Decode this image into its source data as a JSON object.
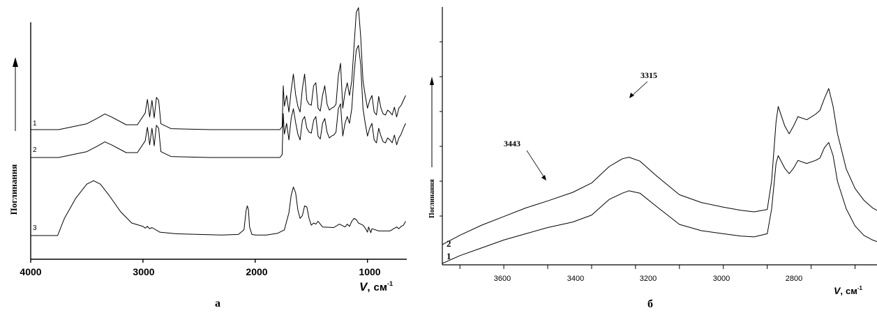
{
  "panels": [
    {
      "caption": "а",
      "ylabel": "Поглинання",
      "xlabel_symbol": "V",
      "xlabel_sep": ",",
      "xlabel_unit": "см",
      "xlabel_exp": "-1",
      "xticks": [
        "4000",
        "3000",
        "2000",
        "1000"
      ],
      "curve_labels": [
        "1",
        "2",
        "3"
      ]
    },
    {
      "caption": "б",
      "ylabel": "Поглинання",
      "xlabel_symbol": "V",
      "xlabel_sep": ",",
      "xlabel_unit": "см",
      "xlabel_exp": "-1",
      "xticks": [
        "3600",
        "3400",
        "3200",
        "3000",
        "2800"
      ],
      "curve_labels": [
        "2",
        "1"
      ],
      "annotations": [
        "3443",
        "3315"
      ]
    }
  ],
  "chart_data": [
    {
      "type": "line",
      "xlabel": "V, см-1",
      "ylabel": "Поглинання",
      "xlim": [
        4000,
        650
      ],
      "x_reversed": true,
      "y_units": "relative absorbance (offset curves)",
      "series": [
        {
          "name": "1",
          "x": [
            4000,
            3750,
            3500,
            3400,
            3340,
            3280,
            3150,
            3050,
            2980,
            2960,
            2940,
            2920,
            2900,
            2880,
            2860,
            2840,
            2750,
            2400,
            2000,
            1780,
            1760,
            1750,
            1740,
            1720,
            1700,
            1680,
            1660,
            1640,
            1620,
            1600,
            1580,
            1560,
            1540,
            1520,
            1500,
            1480,
            1460,
            1440,
            1420,
            1400,
            1380,
            1360,
            1340,
            1320,
            1300,
            1280,
            1260,
            1240,
            1220,
            1200,
            1180,
            1160,
            1140,
            1120,
            1100,
            1080,
            1060,
            1040,
            1020,
            1000,
            980,
            960,
            940,
            920,
            900,
            880,
            860,
            840,
            820,
            800,
            780,
            760,
            740,
            720,
            700,
            680,
            660
          ],
          "y": [
            0.0,
            0.0,
            0.06,
            0.12,
            0.16,
            0.13,
            0.05,
            0.05,
            0.17,
            0.31,
            0.13,
            0.3,
            0.12,
            0.33,
            0.3,
            0.06,
            0.01,
            0.0,
            0.0,
            0.0,
            0.03,
            0.45,
            0.24,
            0.35,
            0.18,
            0.4,
            0.57,
            0.36,
            0.24,
            0.18,
            0.42,
            0.57,
            0.3,
            0.26,
            0.25,
            0.45,
            0.48,
            0.22,
            0.19,
            0.35,
            0.45,
            0.26,
            0.2,
            0.22,
            0.23,
            0.26,
            0.55,
            0.68,
            0.22,
            0.38,
            0.48,
            0.35,
            0.5,
            0.85,
            1.2,
            1.25,
            0.95,
            0.5,
            0.35,
            0.22,
            0.3,
            0.35,
            0.18,
            0.15,
            0.34,
            0.22,
            0.16,
            0.15,
            0.2,
            0.18,
            0.15,
            0.23,
            0.13,
            0.22,
            0.25,
            0.3,
            0.35
          ]
        },
        {
          "name": "2",
          "x": [
            4000,
            3750,
            3500,
            3400,
            3340,
            3280,
            3150,
            3050,
            2980,
            2960,
            2940,
            2920,
            2900,
            2880,
            2860,
            2840,
            2750,
            2400,
            2000,
            1780,
            1760,
            1750,
            1740,
            1720,
            1700,
            1680,
            1660,
            1640,
            1620,
            1600,
            1580,
            1560,
            1540,
            1520,
            1500,
            1480,
            1460,
            1440,
            1420,
            1400,
            1380,
            1360,
            1340,
            1320,
            1300,
            1280,
            1260,
            1240,
            1220,
            1200,
            1180,
            1160,
            1140,
            1120,
            1100,
            1080,
            1060,
            1040,
            1020,
            1000,
            980,
            960,
            940,
            920,
            900,
            880,
            860,
            840,
            820,
            800,
            780,
            760,
            740,
            720,
            700,
            680,
            660
          ],
          "y": [
            0.0,
            0.0,
            0.06,
            0.12,
            0.16,
            0.13,
            0.05,
            0.05,
            0.17,
            0.31,
            0.13,
            0.3,
            0.12,
            0.33,
            0.3,
            0.06,
            0.01,
            0.0,
            0.0,
            0.0,
            0.03,
            0.45,
            0.24,
            0.35,
            0.18,
            0.4,
            0.5,
            0.36,
            0.24,
            0.18,
            0.38,
            0.42,
            0.3,
            0.26,
            0.25,
            0.38,
            0.42,
            0.22,
            0.19,
            0.35,
            0.4,
            0.26,
            0.2,
            0.22,
            0.23,
            0.26,
            0.5,
            0.55,
            0.22,
            0.35,
            0.42,
            0.35,
            0.5,
            0.85,
            1.1,
            1.15,
            0.95,
            0.5,
            0.35,
            0.22,
            0.3,
            0.35,
            0.18,
            0.15,
            0.3,
            0.22,
            0.16,
            0.15,
            0.2,
            0.18,
            0.15,
            0.23,
            0.13,
            0.2,
            0.24,
            0.3,
            0.35
          ]
        },
        {
          "name": "3",
          "x": [
            4000,
            3760,
            3700,
            3600,
            3500,
            3440,
            3380,
            3300,
            3200,
            3100,
            3000,
            2980,
            2960,
            2940,
            2920,
            2850,
            2700,
            2500,
            2300,
            2150,
            2100,
            2080,
            2070,
            2060,
            2050,
            2030,
            2000,
            1900,
            1800,
            1740,
            1700,
            1680,
            1660,
            1640,
            1620,
            1600,
            1580,
            1560,
            1540,
            1520,
            1500,
            1480,
            1460,
            1440,
            1420,
            1400,
            1300,
            1250,
            1200,
            1180,
            1160,
            1140,
            1120,
            1100,
            1080,
            1060,
            1040,
            1020,
            1000,
            990,
            980,
            970,
            960,
            900,
            800,
            740,
            720,
            700,
            680,
            660
          ],
          "y": [
            0.0,
            0.0,
            0.3,
            0.65,
            0.9,
            0.96,
            0.9,
            0.7,
            0.42,
            0.22,
            0.16,
            0.13,
            0.16,
            0.12,
            0.14,
            0.06,
            0.03,
            0.02,
            0.01,
            0.02,
            0.1,
            0.45,
            0.52,
            0.45,
            0.15,
            0.02,
            0.01,
            0.01,
            0.04,
            0.1,
            0.4,
            0.7,
            0.85,
            0.75,
            0.45,
            0.3,
            0.35,
            0.52,
            0.5,
            0.3,
            0.18,
            0.22,
            0.2,
            0.25,
            0.2,
            0.15,
            0.14,
            0.2,
            0.15,
            0.2,
            0.16,
            0.25,
            0.3,
            0.28,
            0.22,
            0.2,
            0.18,
            0.13,
            0.06,
            0.15,
            0.1,
            0.05,
            0.12,
            0.08,
            0.08,
            0.15,
            0.12,
            0.16,
            0.18,
            0.25
          ]
        }
      ]
    },
    {
      "type": "line",
      "xlabel": "V, см-1",
      "ylabel": "Поглинання",
      "xlim": [
        3740,
        2750
      ],
      "x_reversed": true,
      "y_units": "relative absorbance (offset curves)",
      "annotations": [
        {
          "text": "3443",
          "x": 3443
        },
        {
          "text": "3315",
          "x": 3315
        }
      ],
      "series": [
        {
          "name": "2",
          "x": [
            3740,
            3700,
            3650,
            3600,
            3550,
            3500,
            3443,
            3400,
            3360,
            3330,
            3315,
            3290,
            3250,
            3200,
            3150,
            3100,
            3060,
            3030,
            3000,
            2990,
            2980,
            2975,
            2960,
            2950,
            2940,
            2930,
            2910,
            2890,
            2880,
            2870,
            2860,
            2850,
            2840,
            2820,
            2800,
            2780,
            2760,
            2750
          ],
          "y": [
            0.08,
            0.2,
            0.33,
            0.44,
            0.55,
            0.64,
            0.75,
            0.87,
            1.08,
            1.18,
            1.2,
            1.15,
            0.95,
            0.72,
            0.62,
            0.56,
            0.52,
            0.5,
            0.53,
            0.9,
            1.65,
            1.85,
            1.6,
            1.5,
            1.6,
            1.72,
            1.68,
            1.75,
            1.8,
            1.95,
            2.08,
            1.85,
            1.5,
            1.05,
            0.8,
            0.65,
            0.55,
            0.52
          ]
        },
        {
          "name": "1",
          "x": [
            3740,
            3700,
            3650,
            3600,
            3550,
            3500,
            3443,
            3400,
            3360,
            3330,
            3315,
            3290,
            3250,
            3200,
            3150,
            3100,
            3060,
            3030,
            3000,
            2990,
            2980,
            2975,
            2960,
            2950,
            2940,
            2930,
            2910,
            2890,
            2880,
            2870,
            2860,
            2850,
            2840,
            2820,
            2800,
            2780,
            2760,
            2750
          ],
          "y": [
            0.0,
            0.1,
            0.2,
            0.3,
            0.38,
            0.46,
            0.53,
            0.62,
            0.82,
            0.9,
            0.93,
            0.9,
            0.72,
            0.5,
            0.42,
            0.38,
            0.35,
            0.34,
            0.38,
            0.7,
            1.28,
            1.38,
            1.22,
            1.15,
            1.22,
            1.32,
            1.28,
            1.32,
            1.35,
            1.48,
            1.55,
            1.38,
            1.05,
            0.7,
            0.48,
            0.36,
            0.3,
            0.28
          ]
        }
      ]
    }
  ]
}
